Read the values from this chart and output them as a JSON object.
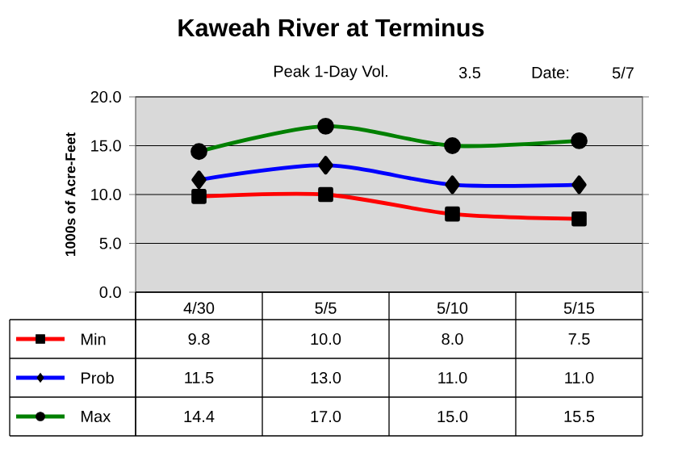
{
  "chart_data": {
    "type": "line",
    "title": "Kaweah River at Terminus",
    "annotations": [
      "Peak 1-Day Vol.",
      "3.5",
      "Date:",
      "5/7"
    ],
    "ylabel": "1000s of Acre-Feet",
    "categories": [
      "4/30",
      "5/5",
      "5/10",
      "5/15"
    ],
    "series": [
      {
        "name": "Min",
        "color": "#ff0000",
        "marker": "square",
        "values": [
          9.8,
          10.0,
          8.0,
          7.5
        ],
        "value_labels": [
          "9.8",
          "10.0",
          "8.0",
          "7.5"
        ]
      },
      {
        "name": "Prob",
        "color": "#0000ff",
        "marker": "diamond",
        "values": [
          11.5,
          13.0,
          11.0,
          11.0
        ],
        "value_labels": [
          "11.5",
          "13.0",
          "11.0",
          "11.0"
        ]
      },
      {
        "name": "Max",
        "color": "#008000",
        "marker": "circle",
        "values": [
          14.4,
          17.0,
          15.0,
          15.5
        ],
        "value_labels": [
          "14.4",
          "17.0",
          "15.0",
          "15.5"
        ]
      }
    ],
    "ylim": [
      0,
      20
    ],
    "yticks": [
      {
        "value": 0,
        "label": "0.0"
      },
      {
        "value": 5,
        "label": "5.0"
      },
      {
        "value": 10,
        "label": "10.0"
      },
      {
        "value": 15,
        "label": "15.0"
      },
      {
        "value": 20,
        "label": "20.0"
      }
    ],
    "grid": "y",
    "legend": "bottom",
    "line_style": "solid"
  }
}
